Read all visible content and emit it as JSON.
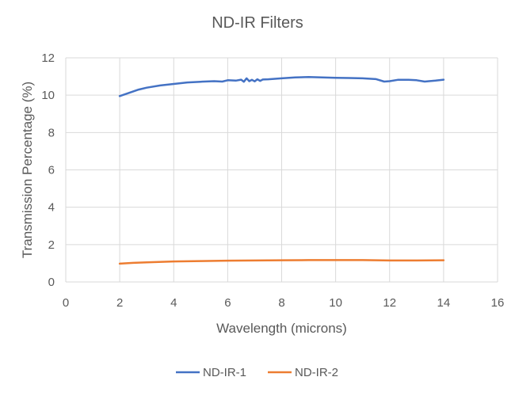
{
  "chart_data": {
    "type": "line",
    "title": "ND-IR Filters",
    "xlabel": "Wavelength (microns)",
    "ylabel": "Transmission Percentage (%)",
    "xlim": [
      0,
      16
    ],
    "ylim": [
      0,
      12
    ],
    "x_ticks": [
      0,
      2,
      4,
      6,
      8,
      10,
      12,
      14,
      16
    ],
    "y_ticks": [
      0,
      2,
      4,
      6,
      8,
      10,
      12
    ],
    "grid": true,
    "legend_position": "bottom",
    "series": [
      {
        "name": "ND-IR-1",
        "color": "#4472C4",
        "x": [
          2.0,
          2.3,
          2.7,
          3.0,
          3.5,
          4.0,
          4.5,
          5.0,
          5.5,
          5.8,
          6.0,
          6.3,
          6.5,
          6.6,
          6.7,
          6.8,
          6.9,
          7.0,
          7.1,
          7.2,
          7.3,
          7.5,
          8.0,
          8.5,
          9.0,
          9.5,
          10.0,
          10.5,
          11.0,
          11.5,
          11.8,
          12.0,
          12.3,
          12.7,
          13.0,
          13.3,
          13.7,
          14.0
        ],
        "y": [
          9.95,
          10.1,
          10.3,
          10.4,
          10.52,
          10.6,
          10.68,
          10.72,
          10.75,
          10.73,
          10.8,
          10.78,
          10.83,
          10.72,
          10.9,
          10.75,
          10.82,
          10.74,
          10.85,
          10.76,
          10.84,
          10.85,
          10.9,
          10.95,
          10.97,
          10.95,
          10.93,
          10.92,
          10.9,
          10.86,
          10.73,
          10.75,
          10.82,
          10.82,
          10.8,
          10.73,
          10.78,
          10.83
        ]
      },
      {
        "name": "ND-IR-2",
        "color": "#ED7D31",
        "x": [
          2.0,
          2.5,
          3.0,
          4.0,
          5.0,
          6.0,
          7.0,
          8.0,
          9.0,
          10.0,
          11.0,
          12.0,
          13.0,
          14.0
        ],
        "y": [
          0.98,
          1.02,
          1.05,
          1.1,
          1.12,
          1.14,
          1.15,
          1.16,
          1.17,
          1.17,
          1.17,
          1.15,
          1.15,
          1.16
        ]
      }
    ]
  }
}
